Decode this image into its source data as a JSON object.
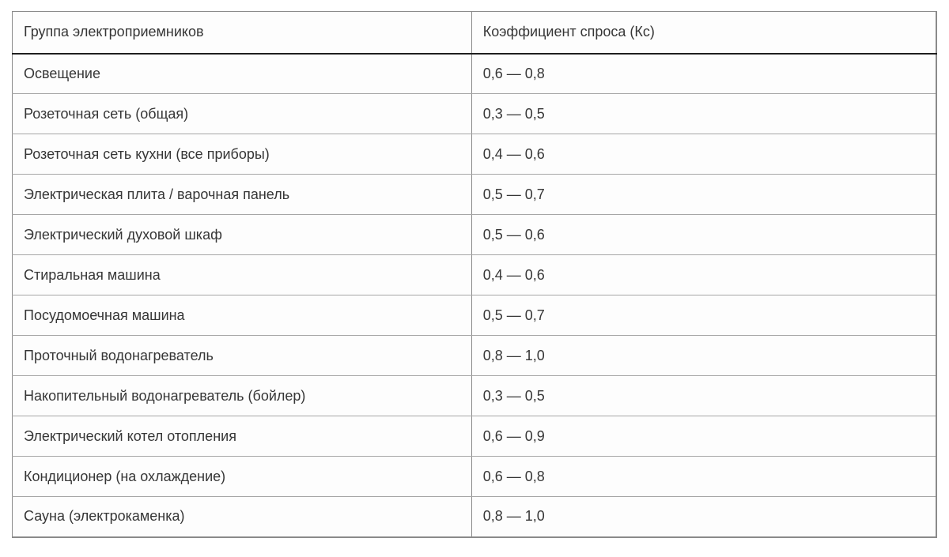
{
  "table": {
    "columns": [
      "Группа электроприемников",
      "Коэффициент спроса (Кс)"
    ],
    "rows": [
      {
        "group": "Освещение",
        "coefficient": "0,6 — 0,8"
      },
      {
        "group": "Розеточная сеть (общая)",
        "coefficient": "0,3 — 0,5"
      },
      {
        "group": "Розеточная сеть кухни (все приборы)",
        "coefficient": "0,4 — 0,6"
      },
      {
        "group": "Электрическая плита / варочная панель",
        "coefficient": "0,5 — 0,7"
      },
      {
        "group": "Электрический духовой шкаф",
        "coefficient": "0,5 — 0,6"
      },
      {
        "group": "Стиральная машина",
        "coefficient": "0,4 — 0,6"
      },
      {
        "group": "Посудомоечная машина",
        "coefficient": "0,5 — 0,7"
      },
      {
        "group": "Проточный водонагреватель",
        "coefficient": "0,8 — 1,0"
      },
      {
        "group": "Накопительный водонагреватель (бойлер)",
        "coefficient": "0,3 — 0,5"
      },
      {
        "group": "Электрический котел отопления",
        "coefficient": "0,6 — 0,9"
      },
      {
        "group": "Кондиционер (на охлаждение)",
        "coefficient": "0,6 — 0,8"
      },
      {
        "group": "Сауна (электрокаменка)",
        "coefficient": "0,8 — 1,0"
      }
    ],
    "colors": {
      "text": "#363636",
      "outer_border": "#8a8a8a",
      "header_separator": "#1f1f1f",
      "row_separator": "#a6a6a6",
      "cell_background": "#fdfdfd"
    }
  }
}
